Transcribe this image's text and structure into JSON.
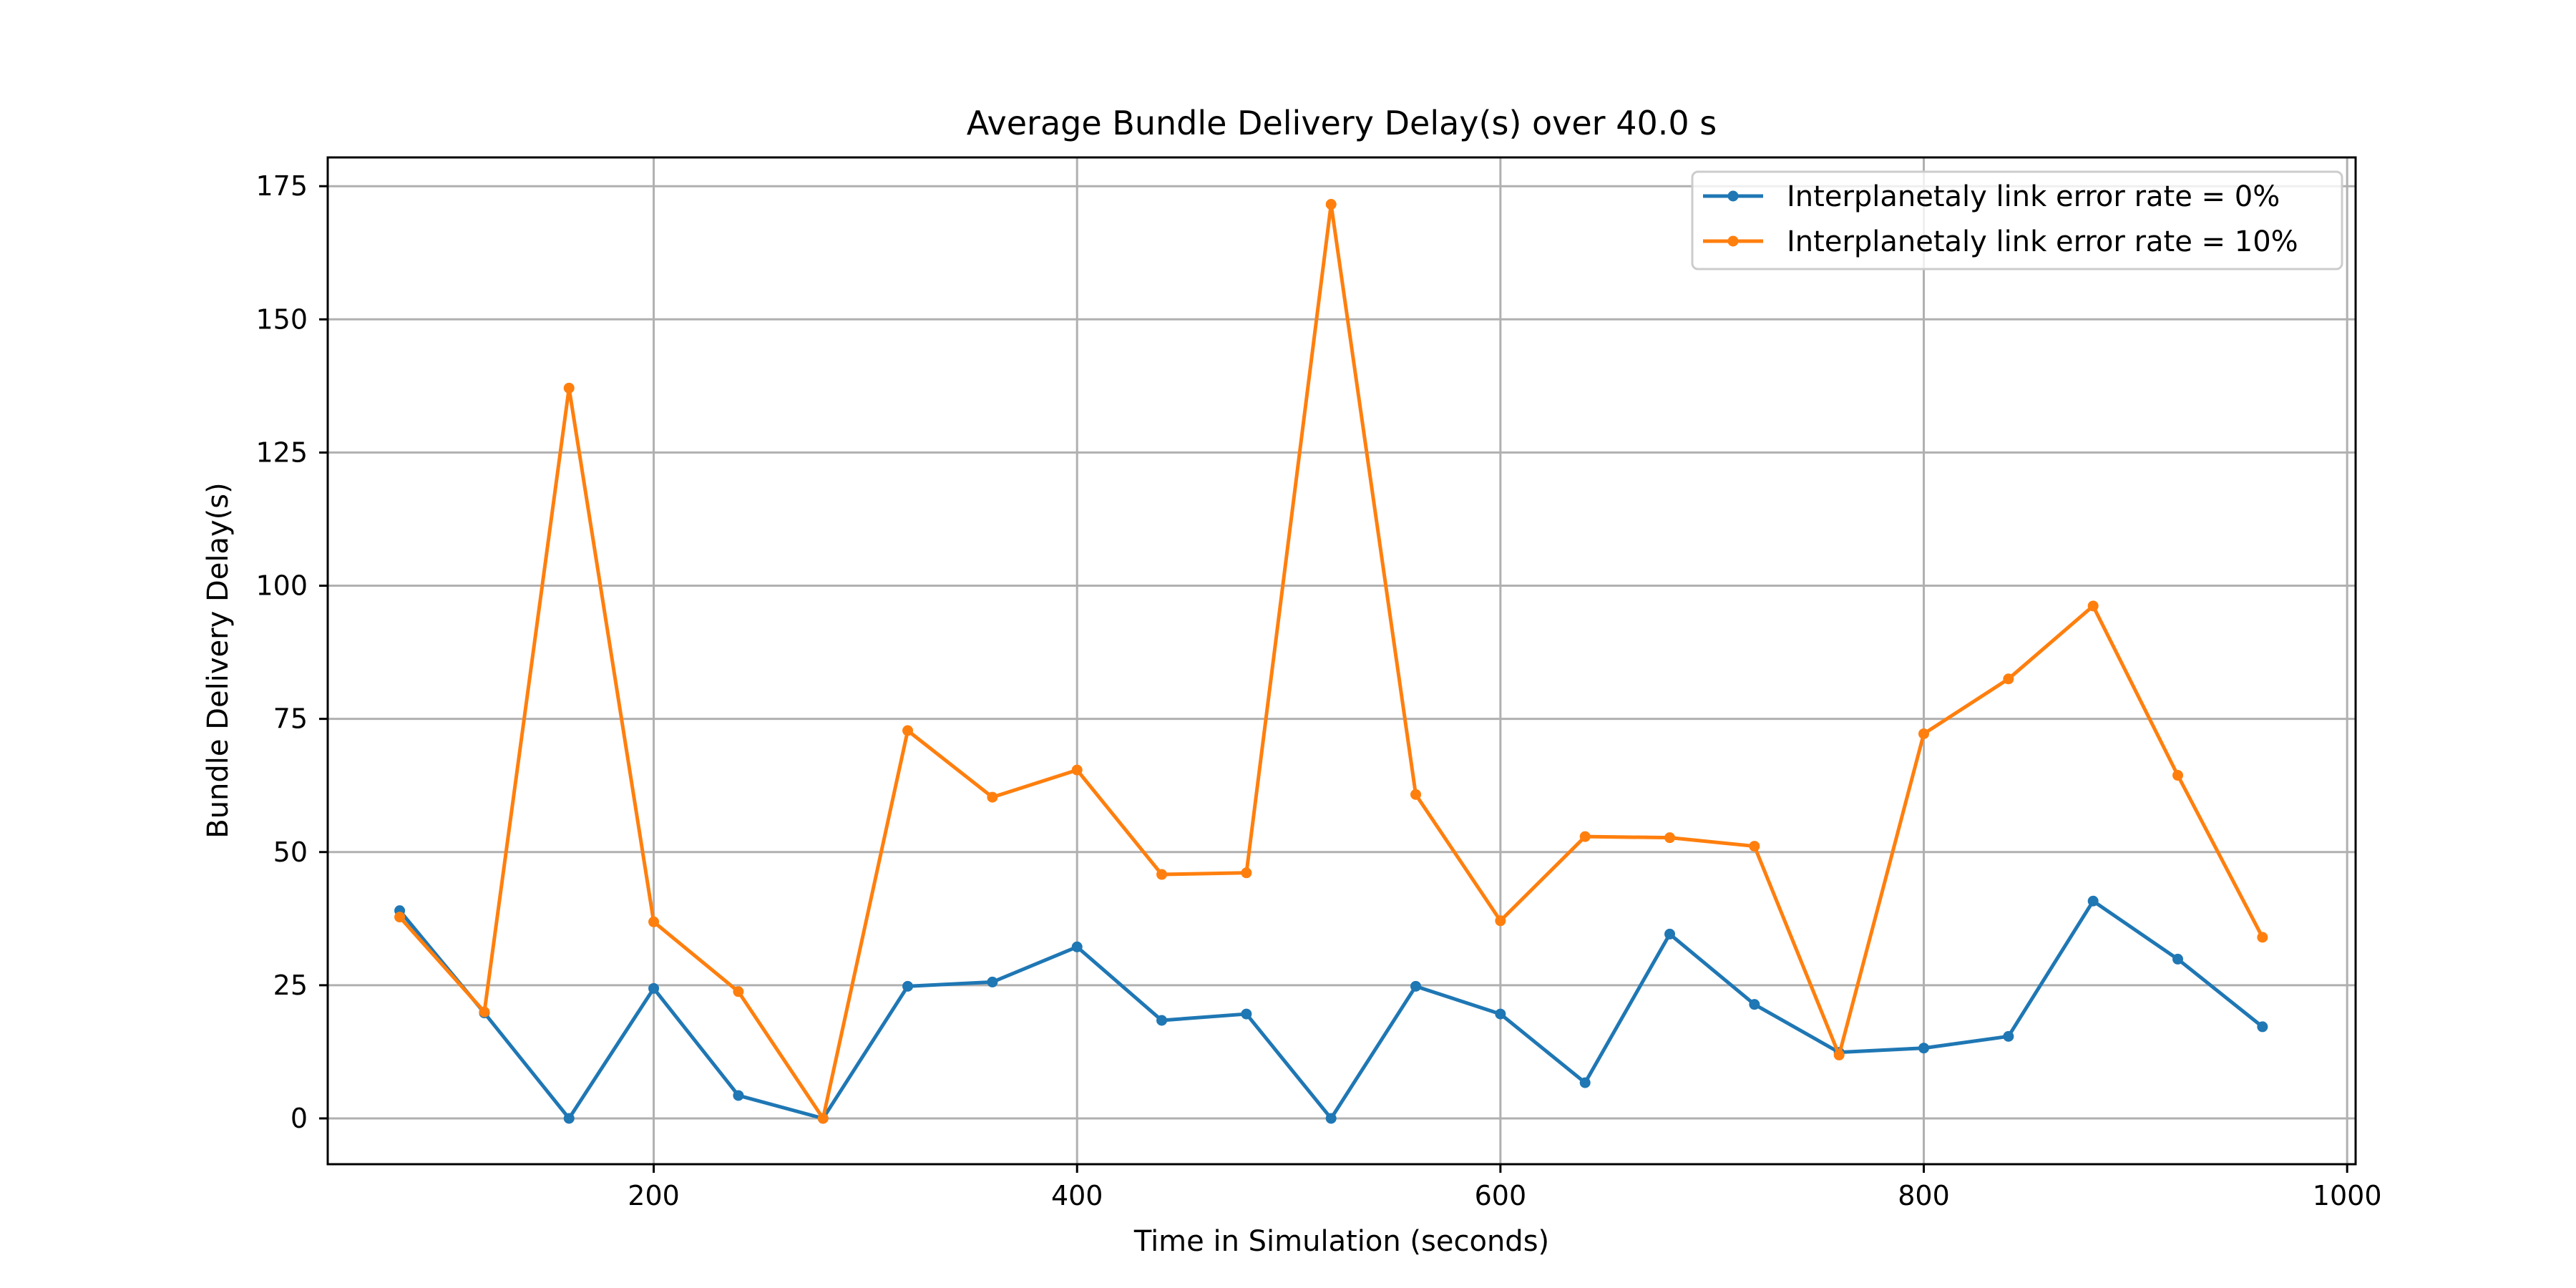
{
  "chart_data": {
    "type": "line",
    "title": "Average Bundle Delivery Delay(s) over 40.0 s",
    "xlabel": "Time in Simulation (seconds)",
    "ylabel": "Bundle Delivery Delay(s)",
    "xlim": [
      46,
      1004
    ],
    "ylim": [
      -8.6,
      180.4
    ],
    "xticks": [
      200,
      400,
      600,
      800,
      1000
    ],
    "yticks": [
      0,
      25,
      50,
      75,
      100,
      125,
      150,
      175
    ],
    "grid": true,
    "legend_position": "top-right",
    "x": [
      80,
      120,
      160,
      200,
      240,
      280,
      320,
      360,
      400,
      440,
      480,
      520,
      560,
      600,
      640,
      680,
      720,
      760,
      800,
      840,
      880,
      920,
      960
    ],
    "series": [
      {
        "name": "Interplanetaly link error rate = 0%",
        "color": "#1f77b4",
        "values": [
          39.0,
          19.8,
          0.0,
          24.4,
          4.3,
          0.0,
          24.8,
          25.6,
          32.2,
          18.4,
          19.6,
          0.0,
          24.8,
          19.6,
          6.7,
          34.6,
          21.4,
          12.4,
          13.2,
          15.4,
          40.8,
          29.9,
          17.2
        ]
      },
      {
        "name": "Interplanetaly link error rate = 10%",
        "color": "#ff7f0e",
        "values": [
          37.8,
          20.0,
          137.1,
          36.9,
          23.8,
          0.0,
          72.8,
          60.3,
          65.4,
          45.8,
          46.1,
          171.6,
          60.8,
          37.1,
          52.9,
          52.7,
          51.1,
          11.9,
          72.2,
          82.5,
          96.2,
          64.4,
          34.0
        ]
      }
    ]
  }
}
